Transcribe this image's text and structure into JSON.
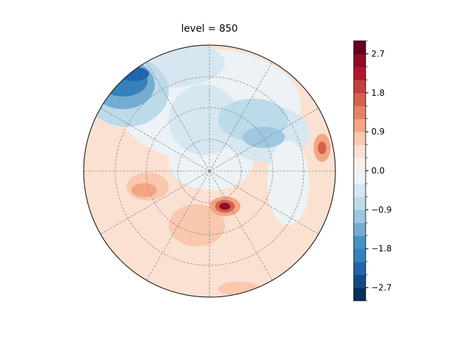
{
  "chart_data": {
    "type": "heatmap",
    "title": "level = 850",
    "projection": "polar stereographic",
    "colormap": "RdBu_r",
    "vmin": -3.0,
    "vmax": 3.0,
    "levels": 20,
    "colorbar_ticks": [
      "2.7",
      "1.8",
      "0.9",
      "0.0",
      "−0.9",
      "−1.8",
      "−2.7"
    ],
    "colorbar_tick_values": [
      2.7,
      1.8,
      0.9,
      0.0,
      -0.9,
      -1.8,
      -2.7
    ],
    "colors": [
      "#053061",
      "#134b87",
      "#2166ac",
      "#3581bb",
      "#4393c3",
      "#74add1",
      "#9dc8e0",
      "#bcdaea",
      "#d6e7f1",
      "#ecf2f5",
      "#f8f0eb",
      "#fbe1d1",
      "#f9c8ae",
      "#f4a582",
      "#e58267",
      "#d6604d",
      "#c3403d",
      "#b2182b",
      "#8f0c25",
      "#67001f"
    ],
    "features": [
      {
        "name": "negative anomaly",
        "region": "upper-left edge",
        "value": -2.4
      },
      {
        "name": "negative anomaly",
        "region": "upper-right band",
        "value": -1.2
      },
      {
        "name": "positive anomaly",
        "region": "south of pole",
        "value": 2.9
      },
      {
        "name": "positive anomaly",
        "region": "right edge",
        "value": 1.8
      }
    ]
  }
}
